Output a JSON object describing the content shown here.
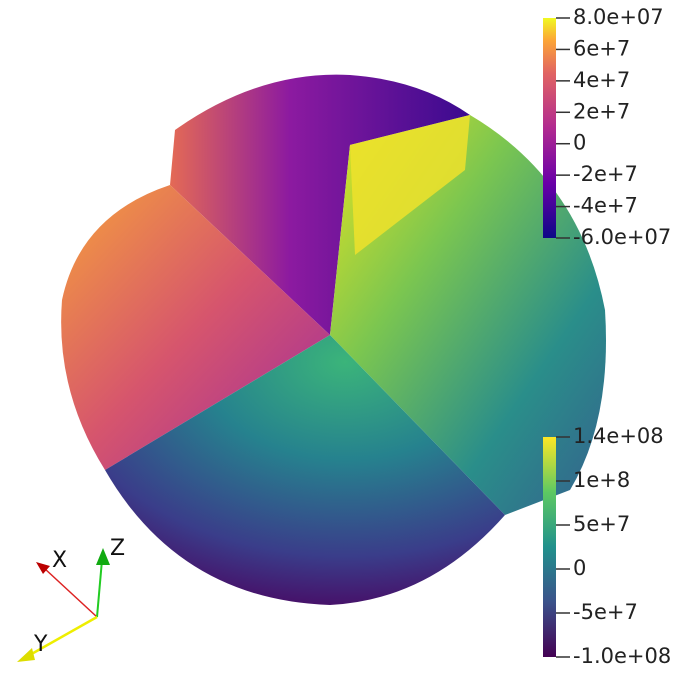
{
  "colorbars": [
    {
      "labels": [
        "8.0e+07",
        "6e+7",
        "4e+7",
        "2e+7",
        "0",
        "-2e+7",
        "-4e+7",
        "-6.0e+07"
      ]
    },
    {
      "labels": [
        "1.4e+08",
        "1e+8",
        "5e+7",
        "0",
        "-5e+7",
        "-1.0e+08"
      ]
    }
  ],
  "orientation_axes": {
    "x": "X",
    "y": "Y",
    "z": "Z"
  }
}
